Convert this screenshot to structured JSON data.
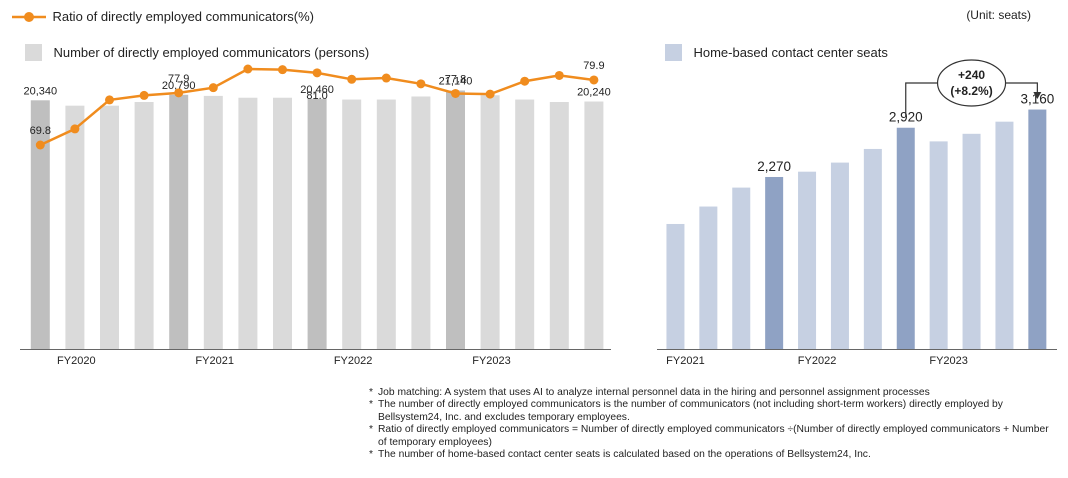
{
  "unit_label": "(Unit: seats)",
  "notes": [
    "Job matching: A system that uses AI to analyze internal personnel data in the hiring and personnel assignment processes",
    "The number of directly employed communicators is the number of communicators (not including short-term workers) directly employed by Bellsystem24, Inc. and excludes temporary employees.",
    "Ratio of directly employed communicators = Number of directly employed communicators ÷(Number of directly employed communicators + Number of temporary employees)",
    "The number of home-based contact center seats is calculated based on the operations of Bellsystem24, Inc."
  ],
  "colors": {
    "line": "#f08c1e",
    "bar_gray": "#dadada",
    "bar_gray_dark": "#bfbfbf",
    "bar_blue": "#c6d0e2",
    "bar_blue_dark": "#8fa2c4"
  },
  "chart_data": [
    {
      "type": "bar+line",
      "legend": {
        "line": "Ratio of directly employed communicators(%)",
        "bar": "Number of directly employed communicators (persons)"
      },
      "x_tick_labels": [
        "FY2020",
        "FY2021",
        "FY2022",
        "FY2023"
      ],
      "x_tick_positions": [
        0,
        4,
        8,
        12
      ],
      "bar_series": {
        "name": "Number of directly employed communicators (persons)",
        "values": [
          20340,
          19900,
          19900,
          20200,
          20790,
          20700,
          20550,
          20550,
          20460,
          20400,
          20400,
          20650,
          21140,
          20750,
          20400,
          20200,
          20240
        ],
        "highlighted_index": [
          0,
          4,
          8,
          12
        ],
        "labels": {
          "0": "20,340",
          "4": "20,790",
          "8": "20,460",
          "12": "21,140",
          "16": "20,240"
        },
        "ylim": [
          0,
          22000
        ]
      },
      "line_series": {
        "name": "Ratio of directly employed communicators(%)",
        "values": [
          69.8,
          72.3,
          76.8,
          77.5,
          77.9,
          78.7,
          81.6,
          81.5,
          81.0,
          80.0,
          80.2,
          79.3,
          77.8,
          77.7,
          79.7,
          80.6,
          79.9
        ],
        "labels": {
          "0": "69.8",
          "4": "77.9",
          "8": "81.0",
          "12": "77.8",
          "16": "79.9"
        },
        "ylim": [
          60,
          84
        ]
      }
    },
    {
      "type": "bar",
      "legend": "Home-based contact center seats",
      "x_tick_labels": [
        "FY2021",
        "FY2022",
        "FY2023"
      ],
      "x_tick_positions": [
        0,
        4,
        8
      ],
      "values": [
        1650,
        1880,
        2130,
        2270,
        2340,
        2460,
        2640,
        2920,
        2740,
        2840,
        3000,
        3160
      ],
      "highlighted_index": [
        3,
        7,
        11
      ],
      "labels": {
        "3": "2,270",
        "7": "2,920",
        "11": "3,160"
      },
      "ylim": [
        0,
        3550
      ],
      "annotation": {
        "line1": "+240",
        "line2": "(+8.2%)"
      }
    }
  ]
}
